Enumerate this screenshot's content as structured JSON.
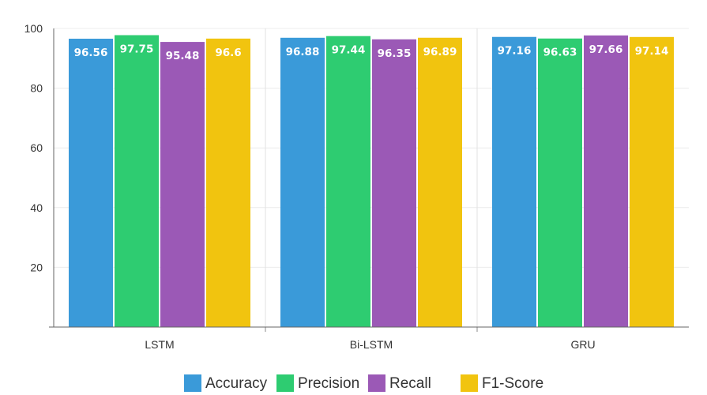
{
  "chart_data": {
    "type": "bar",
    "title": "",
    "xlabel": "",
    "ylabel": "",
    "categories": [
      "LSTM",
      "Bi-LSTM",
      "GRU"
    ],
    "series": [
      {
        "name": "Accuracy",
        "color": "#3a9ad9",
        "values": [
          96.56,
          96.88,
          97.16
        ],
        "labels": [
          "96.56",
          "96.88",
          "97.16"
        ]
      },
      {
        "name": "Precision",
        "color": "#2ecc71",
        "values": [
          97.75,
          97.44,
          96.63
        ],
        "labels": [
          "97.75",
          "97.44",
          "96.63"
        ]
      },
      {
        "name": "Recall",
        "color": "#9b59b6",
        "values": [
          95.48,
          96.35,
          97.66
        ],
        "labels": [
          "95.48",
          "96.35",
          "97.66"
        ]
      },
      {
        "name": "F1-Score",
        "color": "#f1c40f",
        "values": [
          96.6,
          96.89,
          97.14
        ],
        "labels": [
          "96.6",
          "96.89",
          "97.14"
        ]
      }
    ],
    "ylim": [
      0,
      100
    ],
    "yticks": [
      20,
      40,
      60,
      80,
      100
    ],
    "ytick_labels": [
      "20",
      "40",
      "60",
      "80",
      "100"
    ],
    "grid": "vertical category separators and horizontal lines",
    "legend_position": "bottom"
  }
}
